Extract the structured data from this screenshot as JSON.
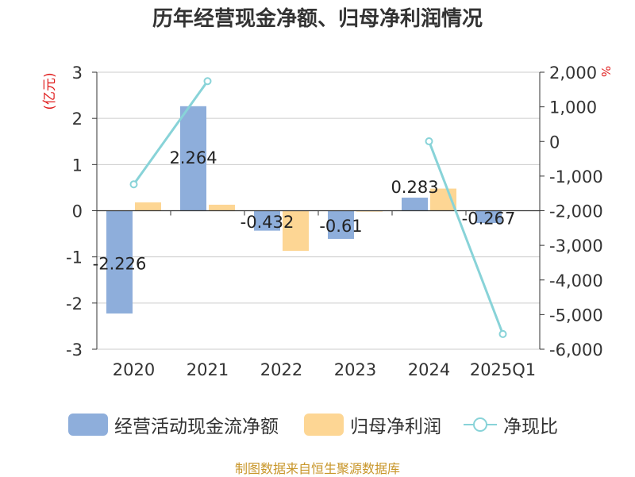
{
  "chart_data": {
    "type": "bar+line",
    "title": "历年经营现金净额、归母净利润情况",
    "categories": [
      "2020",
      "2021",
      "2022",
      "2023",
      "2024",
      "2025Q1"
    ],
    "left_axis": {
      "unit_label": "(亿元)",
      "ylim": [
        -3,
        3
      ],
      "ticks": [
        "3",
        "2",
        "1",
        "0",
        "-1",
        "-2",
        "-3"
      ]
    },
    "right_axis": {
      "unit_label": "%",
      "ylim": [
        -6000,
        2000
      ],
      "ticks": [
        "2,000",
        "1,000",
        "0",
        "-1,000",
        "-2,000",
        "-3,000",
        "-4,000",
        "-5,000",
        "-6,000"
      ]
    },
    "series": [
      {
        "name": "经营活动现金流净额",
        "kind": "bar",
        "axis": "left",
        "color": "#8eaedb",
        "values": [
          -2.226,
          2.264,
          -0.432,
          -0.61,
          0.283,
          -0.267
        ],
        "labels": [
          "-2.226",
          "2.264",
          "-0.432",
          "-0.61",
          "0.283",
          "-0.267"
        ]
      },
      {
        "name": "归母净利润",
        "kind": "bar",
        "axis": "left",
        "color": "#fdd694",
        "values": [
          0.18,
          0.13,
          -0.87,
          -0.02,
          0.48,
          0.0
        ]
      },
      {
        "name": "净现比",
        "kind": "line",
        "axis": "right",
        "color": "#88d3d8",
        "values": [
          -1237,
          1742,
          null,
          null,
          5,
          -5562
        ]
      }
    ]
  },
  "legend": {
    "item1": "经营活动现金流净额",
    "item2": "归母净利润",
    "item3": "净现比"
  },
  "source": "制图数据来自恒生聚源数据库"
}
